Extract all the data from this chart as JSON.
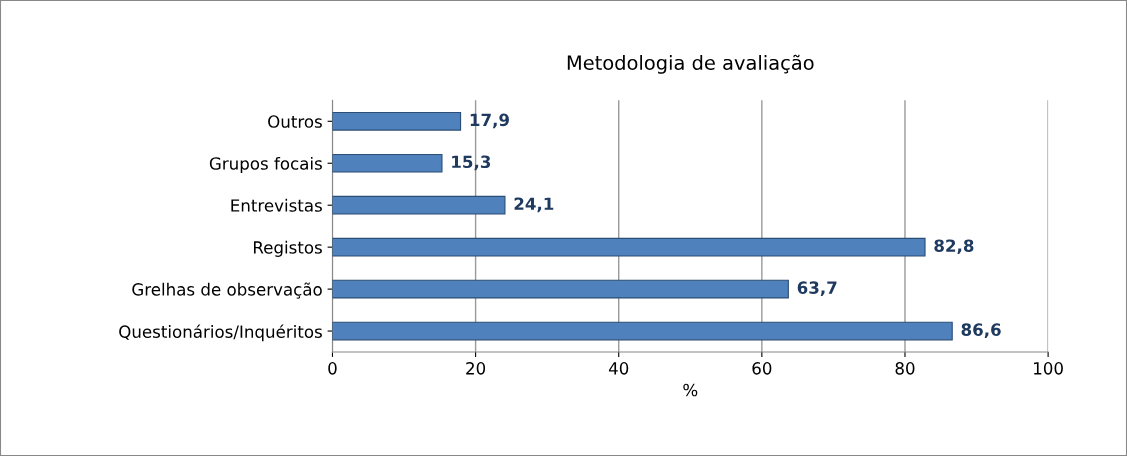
{
  "chart_data": {
    "type": "bar",
    "orientation": "horizontal",
    "title": "Metodologia de avaliação",
    "xlabel": "%",
    "categories": [
      "Outros",
      "Grupos focais",
      "Entrevistas",
      "Registos",
      "Grelhas de observação",
      "Questionários/Inquéritos"
    ],
    "values": [
      17.9,
      15.3,
      24.1,
      82.8,
      63.7,
      86.6
    ],
    "value_labels": [
      "17,9",
      "15,3",
      "24,1",
      "82,8",
      "63,7",
      "86,6"
    ],
    "color": "#4f81bd",
    "xlim": [
      0,
      100
    ],
    "xticks": [
      0,
      20,
      40,
      60,
      80,
      100
    ],
    "grid": "x",
    "legend": false
  }
}
